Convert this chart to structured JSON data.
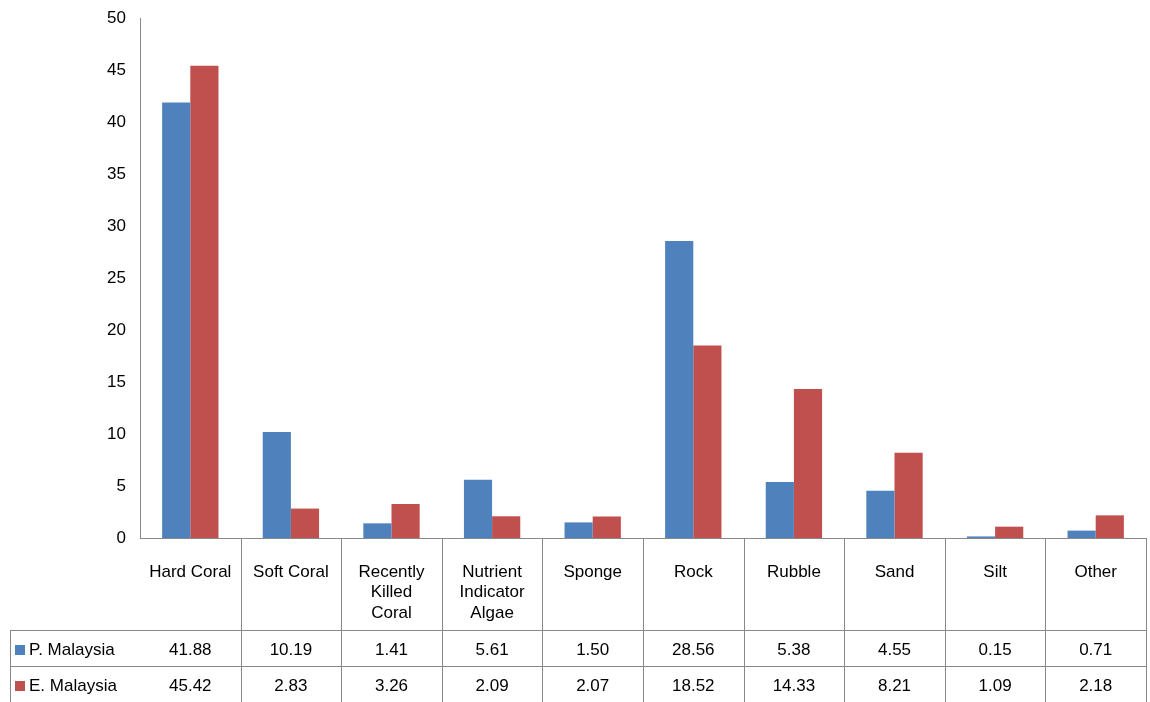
{
  "chart_data": {
    "type": "bar",
    "categories": [
      "Hard Coral",
      "Soft Coral",
      "Recently Killed Coral",
      "Nutrient Indicator Algae",
      "Sponge",
      "Rock",
      "Rubble",
      "Sand",
      "Silt",
      "Other"
    ],
    "ylim": [
      0,
      50
    ],
    "yticks": [
      0,
      5,
      10,
      15,
      20,
      25,
      30,
      35,
      40,
      45,
      50
    ],
    "grid": false,
    "legend": "bottom left",
    "series": [
      {
        "name": "P. Malaysia",
        "color": "#4f81bd",
        "values": [
          41.88,
          10.19,
          1.41,
          5.61,
          1.5,
          28.56,
          5.38,
          4.55,
          0.15,
          0.71
        ],
        "value_labels": [
          "41.88",
          "10.19",
          "1.41",
          "5.61",
          "1.50",
          "28.56",
          "5.38",
          "4.55",
          "0.15",
          "0.71"
        ]
      },
      {
        "name": "E. Malaysia",
        "color": "#c0504d",
        "values": [
          45.42,
          2.83,
          3.26,
          2.09,
          2.07,
          18.52,
          14.33,
          8.21,
          1.09,
          2.18
        ],
        "value_labels": [
          "45.42",
          "2.83",
          "3.26",
          "2.09",
          "2.07",
          "18.52",
          "14.33",
          "8.21",
          "1.09",
          "2.18"
        ]
      }
    ]
  }
}
